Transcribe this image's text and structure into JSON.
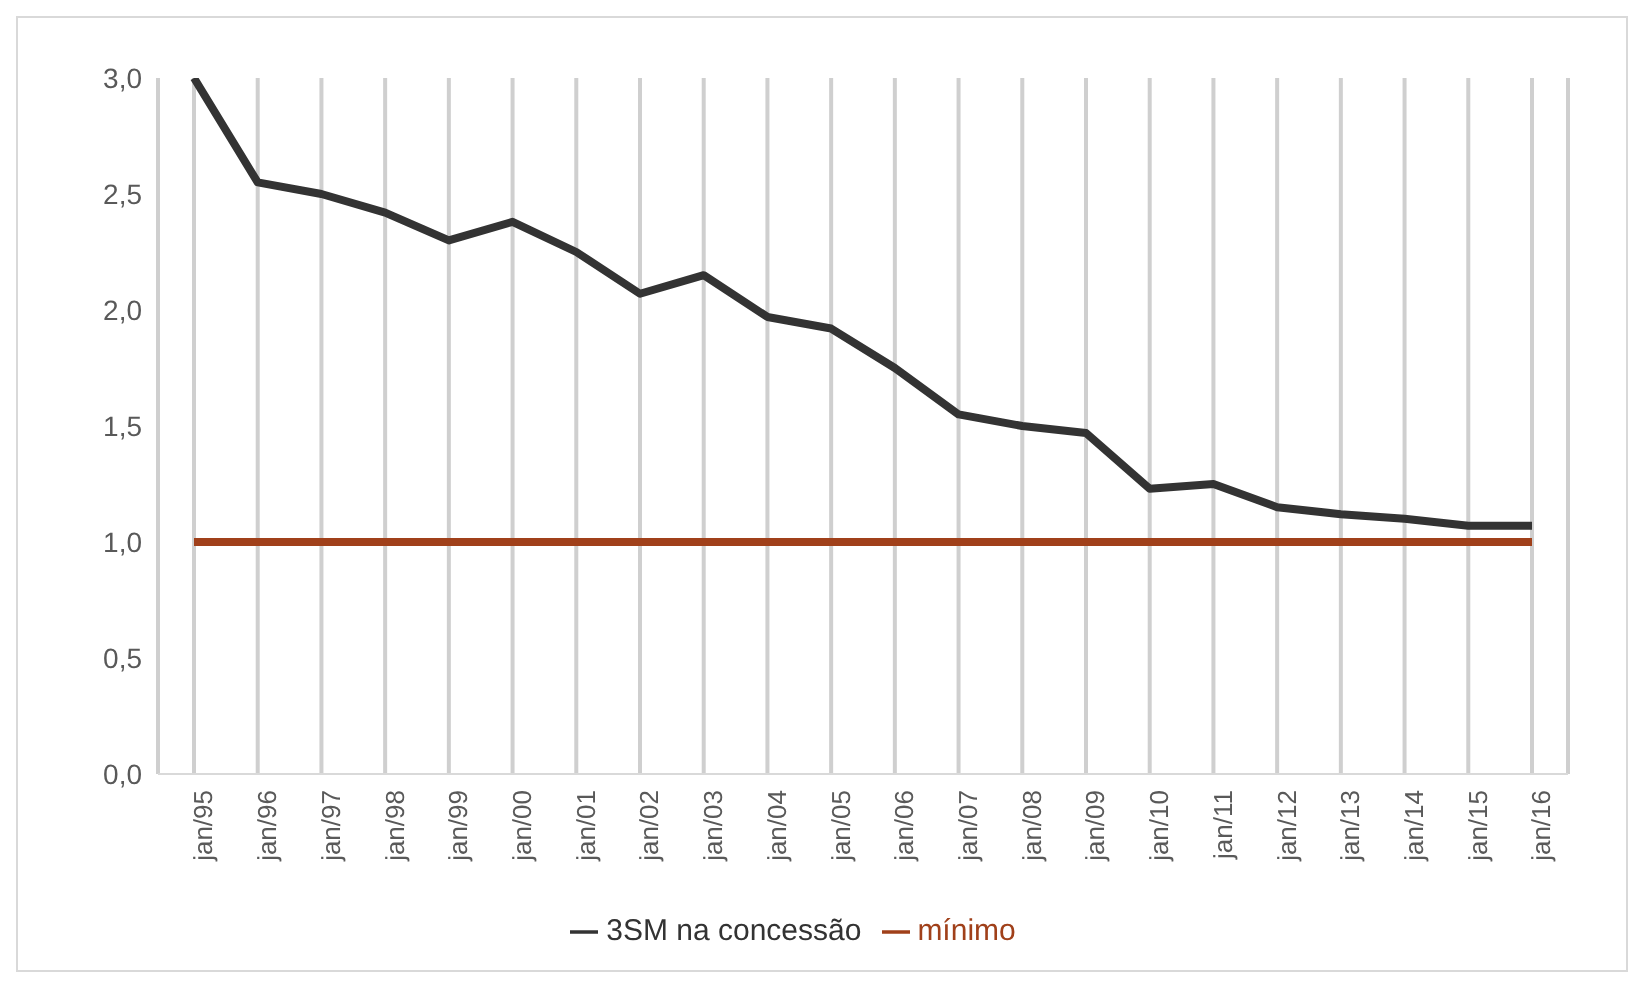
{
  "chart_data": {
    "type": "line",
    "categories": [
      "jan/95",
      "jan/96",
      "jan/97",
      "jan/98",
      "jan/99",
      "jan/00",
      "jan/01",
      "jan/02",
      "jan/03",
      "jan/04",
      "jan/05",
      "jan/06",
      "jan/07",
      "jan/08",
      "jan/09",
      "jan/10",
      "jan/11",
      "jan/12",
      "jan/13",
      "jan/14",
      "jan/15",
      "jan/16"
    ],
    "series": [
      {
        "name": "3SM na concessão",
        "color": "#333333",
        "values": [
          3.0,
          2.55,
          2.5,
          2.42,
          2.3,
          2.38,
          2.25,
          2.07,
          2.15,
          1.97,
          1.92,
          1.75,
          1.55,
          1.5,
          1.47,
          1.23,
          1.25,
          1.15,
          1.12,
          1.1,
          1.07,
          1.07
        ]
      },
      {
        "name": "mínimo",
        "color": "#a0401a",
        "values": [
          1.0,
          1.0,
          1.0,
          1.0,
          1.0,
          1.0,
          1.0,
          1.0,
          1.0,
          1.0,
          1.0,
          1.0,
          1.0,
          1.0,
          1.0,
          1.0,
          1.0,
          1.0,
          1.0,
          1.0,
          1.0,
          1.0
        ]
      }
    ],
    "ylim": [
      0,
      3.0
    ],
    "yticks": [
      {
        "value": 0,
        "label": "0,0"
      },
      {
        "value": 0.5,
        "label": "0,5"
      },
      {
        "value": 1.0,
        "label": "1,0"
      },
      {
        "value": 1.5,
        "label": "1,5"
      },
      {
        "value": 2.0,
        "label": "2,0"
      },
      {
        "value": 2.5,
        "label": "2,5"
      },
      {
        "value": 3.0,
        "label": "3,0"
      }
    ],
    "grid": "x",
    "legend": "bottom",
    "marker": "none",
    "line_style": "solid"
  }
}
